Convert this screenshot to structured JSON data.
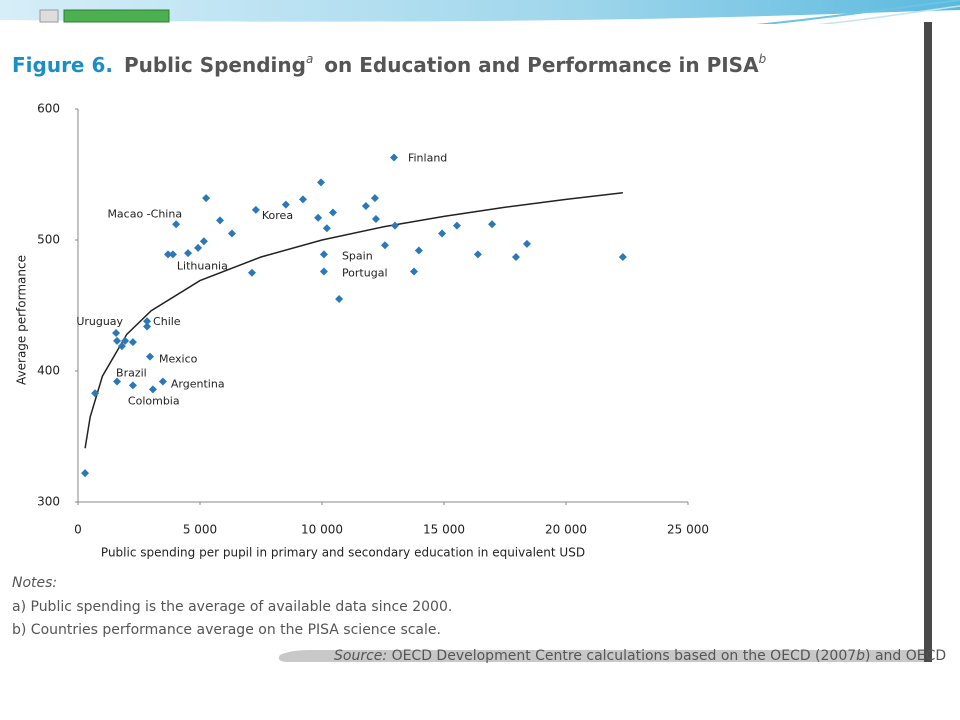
{
  "chart_data": {
    "type": "scatter",
    "title": {
      "number": "Figure 6.",
      "text1": "Public Spending",
      "sup1": "a",
      "text2": "on Education and Performance in PISA",
      "sup2": "b"
    },
    "xlabel": "Public spending per pupil in primary and secondary education in equivalent USD",
    "ylabel": "Average performance",
    "xlim": [
      0,
      25000
    ],
    "ylim": [
      300,
      600
    ],
    "xticks": [
      0,
      {
        "value": 5000,
        "label": "5 000"
      },
      {
        "value": 10000,
        "label": "10 000"
      },
      {
        "value": 15000,
        "label": "15 000"
      },
      {
        "value": 20000,
        "label": "20 000"
      },
      {
        "value": 25000,
        "label": "25 000"
      }
    ],
    "yticks": [
      300,
      400,
      500,
      600
    ],
    "color": "#2b78b8",
    "x": [
      12950,
      290,
      700,
      1560,
      1600,
      1800,
      1930,
      2250,
      2830,
      2830,
      1600,
      2250,
      2950,
      3070,
      3480,
      4020,
      3690,
      3890,
      4510,
      4920,
      5160,
      5250,
      5820,
      6310,
      7130,
      7290,
      8520,
      9220,
      9840,
      9960,
      10200,
      10450,
      10080,
      10080,
      10700,
      11800,
      12170,
      12210,
      12580,
      12990,
      13770,
      13970,
      14920,
      15530,
      16390,
      16970,
      17950,
      18400,
      22330
    ],
    "values": [
      563,
      322,
      383,
      429,
      423,
      419,
      423,
      422,
      438,
      434,
      392,
      389,
      411,
      386,
      392,
      512,
      489,
      489,
      490,
      494,
      499,
      532,
      515,
      505,
      475,
      523,
      527,
      531,
      517,
      544,
      509,
      521,
      489,
      476,
      455,
      526,
      532,
      516,
      496,
      511,
      476,
      492,
      505,
      511,
      489,
      512,
      487,
      497,
      487
    ],
    "point_labels": [
      "Finland",
      null,
      null,
      "Uruguay",
      null,
      null,
      null,
      null,
      "Chile",
      null,
      "Brazil",
      null,
      "Mexico",
      "Colombia",
      "Argentina",
      "Macao -China",
      null,
      "Lithuania",
      null,
      null,
      null,
      null,
      null,
      null,
      null,
      "Korea",
      null,
      null,
      null,
      null,
      null,
      null,
      "Spain",
      "Portugal",
      null,
      null,
      null,
      null,
      null,
      null,
      null,
      null,
      null,
      null,
      null,
      null,
      null,
      null,
      null
    ],
    "trend": {
      "x": [
        290,
        500,
        1000,
        2000,
        3000,
        5000,
        7500,
        10000,
        12500,
        15000,
        17500,
        20000,
        22330
      ],
      "values": [
        341,
        365,
        396,
        428,
        446,
        469,
        487,
        500,
        510,
        518,
        525,
        531,
        536
      ]
    },
    "notes": {
      "heading": "Notes:",
      "items": [
        "a) Public spending is the average of available data since 2000.",
        "b) Countries performance average on the PISA science scale."
      ]
    },
    "source": {
      "label": "Source:",
      "text1": "OECD Development Centre calculations based on the OECD (2007",
      "italic": "b",
      "text2": ") and OECD"
    }
  }
}
